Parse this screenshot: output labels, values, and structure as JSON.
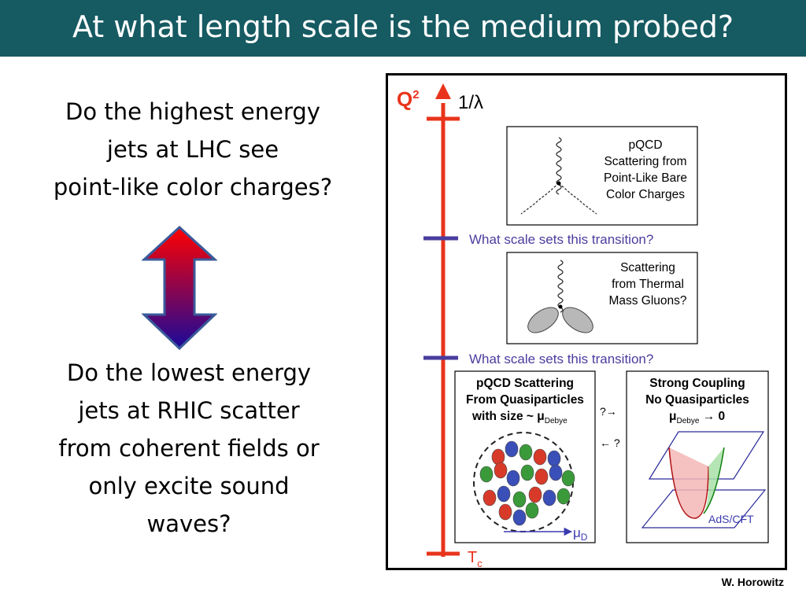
{
  "slide": {
    "title": "At what length scale is the medium probed?",
    "question_top": [
      "Do the highest energy",
      "jets at LHC see",
      "point-like color charges?"
    ],
    "question_bottom": [
      "Do the lowest energy",
      "jets at RHIC scatter",
      "from coherent fields or",
      "only excite sound",
      "waves?"
    ],
    "credit": "W. Horowitz"
  },
  "figure": {
    "axis_label": "Q",
    "axis_label_sup": "2",
    "axis_top_label": "1/λ",
    "axis_bottom_label": "T",
    "axis_bottom_sub": "c",
    "transition_labels": [
      "What scale sets this transition?",
      "What scale sets this transition?"
    ],
    "box1_lines": [
      "pQCD",
      "Scattering from",
      "Point-Like Bare",
      "Color Charges"
    ],
    "box2_lines": [
      "Scattering",
      "from Thermal",
      "Mass Gluons?"
    ],
    "box3_lines": [
      "pQCD Scattering",
      "From Quasiparticles"
    ],
    "box3_size_prefix": "with size ~ μ",
    "box3_size_sub": "Debye",
    "box4_lines": [
      "Strong Coupling",
      "No Quasiparticles"
    ],
    "box4_mu": "μ",
    "box4_mu_sub": "Debye",
    "box4_mu_suffix": " → 0",
    "right_arrow_text": "?→",
    "left_arrow_text": "← ?",
    "mu_d_label": "μ",
    "mu_d_sub": "D",
    "ads_cft_label": "AdS/CFT",
    "colors": {
      "axis": "#e8341c",
      "transition": "#4a3d9e",
      "transition_text": "#4a3d9e"
    }
  }
}
